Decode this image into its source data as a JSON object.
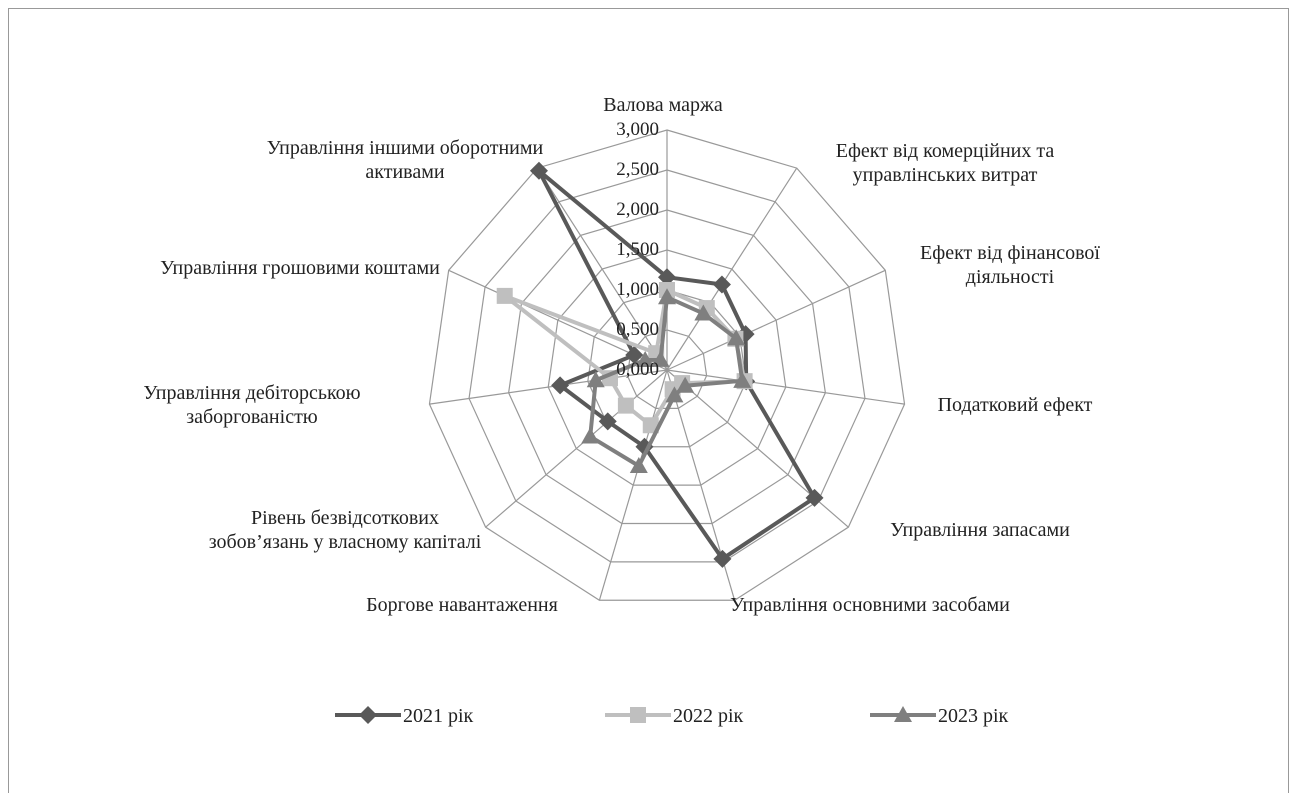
{
  "chart_data": {
    "type": "radar",
    "categories": [
      "Валова маржа",
      "Ефект від комерційних та управлінських витрат",
      "Ефект від фінансової діяльності",
      "Податковий ефект",
      "Управління запасами",
      "Управління основними засобами",
      "Боргове навантаження",
      "Рівень безвідсоткових зобов’язань у власному капіталі",
      "Управління дебіторською заборгованістю",
      "Управління грошовими коштами",
      "Управління іншими оборотними активами"
    ],
    "series": [
      {
        "name": "2021 рік",
        "color": "#595959",
        "marker": "diamond",
        "values": [
          1.16,
          1.27,
          1.08,
          1.0,
          2.44,
          2.46,
          1.0,
          0.98,
          1.35,
          0.45,
          2.96
        ]
      },
      {
        "name": "2022 рік",
        "color": "#bfbfbf",
        "marker": "square",
        "values": [
          1.0,
          0.92,
          0.94,
          0.98,
          0.25,
          0.25,
          0.72,
          0.68,
          0.72,
          2.23,
          0.25
        ]
      },
      {
        "name": "2023 рік",
        "color": "#7f7f7f",
        "marker": "triangle",
        "values": [
          0.91,
          0.84,
          0.95,
          0.95,
          0.3,
          0.33,
          1.25,
          1.27,
          0.9,
          0.3,
          0.15
        ]
      }
    ],
    "ylim": [
      0,
      3
    ],
    "yticks": [
      {
        "value": 0,
        "label": "0,000"
      },
      {
        "value": 0.5,
        "label": "0,500"
      },
      {
        "value": 1,
        "label": "1,000"
      },
      {
        "value": 1.5,
        "label": "1,500"
      },
      {
        "value": 2,
        "label": "2,000"
      },
      {
        "value": 2.5,
        "label": "2,500"
      },
      {
        "value": 3,
        "label": "3,000"
      }
    ],
    "grid": true,
    "legend": "bottom"
  }
}
